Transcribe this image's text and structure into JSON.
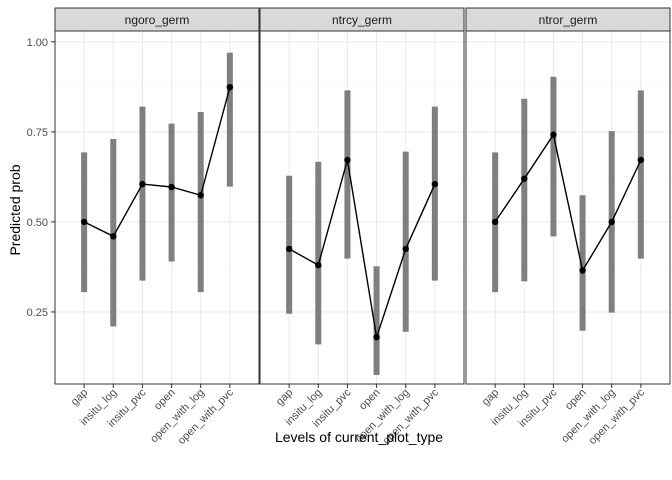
{
  "chart_data": {
    "type": "line",
    "xlabel": "Levels of current_plot_type",
    "ylabel": "Predicted prob",
    "ylim": [
      0.05,
      1.03
    ],
    "yticks": [
      0.25,
      0.5,
      0.75,
      1.0
    ],
    "ytick_labels": [
      "0.25",
      "0.50",
      "0.75",
      "1.00"
    ],
    "categories": [
      "gap",
      "insitu_log",
      "insitu_pvc",
      "open",
      "open_with_log",
      "open_with_pvc"
    ],
    "grid": true,
    "panels": [
      {
        "name": "ngoro_germ",
        "values": [
          0.5,
          0.46,
          0.605,
          0.597,
          0.574,
          0.874
        ],
        "lower": [
          0.305,
          0.21,
          0.337,
          0.39,
          0.305,
          0.598
        ],
        "upper": [
          0.693,
          0.73,
          0.82,
          0.773,
          0.805,
          0.97
        ]
      },
      {
        "name": "ntrcy_germ",
        "values": [
          0.425,
          0.38,
          0.672,
          0.18,
          0.425,
          0.605
        ],
        "lower": [
          0.245,
          0.16,
          0.398,
          0.075,
          0.195,
          0.337
        ],
        "upper": [
          0.628,
          0.667,
          0.865,
          0.377,
          0.695,
          0.82
        ]
      },
      {
        "name": "ntror_germ",
        "values": [
          0.5,
          0.62,
          0.742,
          0.365,
          0.5,
          0.672
        ],
        "lower": [
          0.305,
          0.335,
          0.46,
          0.198,
          0.248,
          0.398
        ],
        "upper": [
          0.693,
          0.842,
          0.903,
          0.574,
          0.752,
          0.865
        ]
      }
    ],
    "colors": {
      "errorbar": "#7f7f7f",
      "line": "#000000",
      "point": "#000000",
      "strip_bg": "#d9d9d9",
      "grid_major": "#ebebeb",
      "grid_minor": "#f5f5f5",
      "panel_border": "#333333"
    }
  }
}
